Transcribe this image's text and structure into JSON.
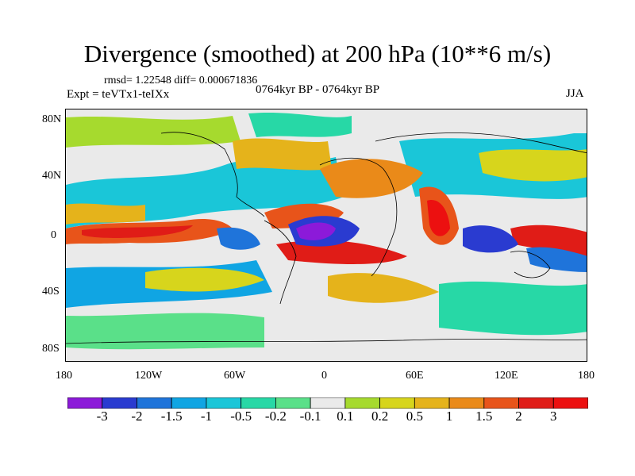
{
  "title": "Divergence (smoothed) at 200 hPa (10**6 m/s)",
  "stats": "rmsd= 1.22548  diff= 0.000671836",
  "experiment": "Expt = teVTx1-teIXx",
  "period": "0764kyr BP - 0764kyr BP",
  "season": "JJA",
  "lat_labels": [
    "80N",
    "40N",
    "0",
    "40S",
    "80S"
  ],
  "lon_labels": [
    "180",
    "120W",
    "60W",
    "0",
    "60E",
    "120E",
    "180"
  ],
  "colorbar": {
    "levels": [
      "-3",
      "-2",
      "-1.5",
      "-1",
      "-0.5",
      "-0.2",
      "-0.1",
      "0.1",
      "0.2",
      "0.5",
      "1",
      "1.5",
      "2",
      "3"
    ],
    "colors": [
      "#8c1ad9",
      "#2a3bd0",
      "#1f74da",
      "#10a5e3",
      "#1ac6d8",
      "#27d8a6",
      "#5ae089",
      "#eaeaea",
      "#a6da2e",
      "#d7d51c",
      "#e5b31b",
      "#ea8a19",
      "#e8541a",
      "#e01c17",
      "#ec1010"
    ]
  },
  "map": {
    "background": "#eaeaea",
    "features": [
      {
        "name": "equatorial-atlantic-convergence",
        "value": -3
      },
      {
        "name": "eastern-pacific-divergence",
        "value": 3
      },
      {
        "name": "indian-ocean-divergence",
        "value": 3
      },
      {
        "name": "western-pacific-convergence",
        "value": -2
      }
    ]
  }
}
